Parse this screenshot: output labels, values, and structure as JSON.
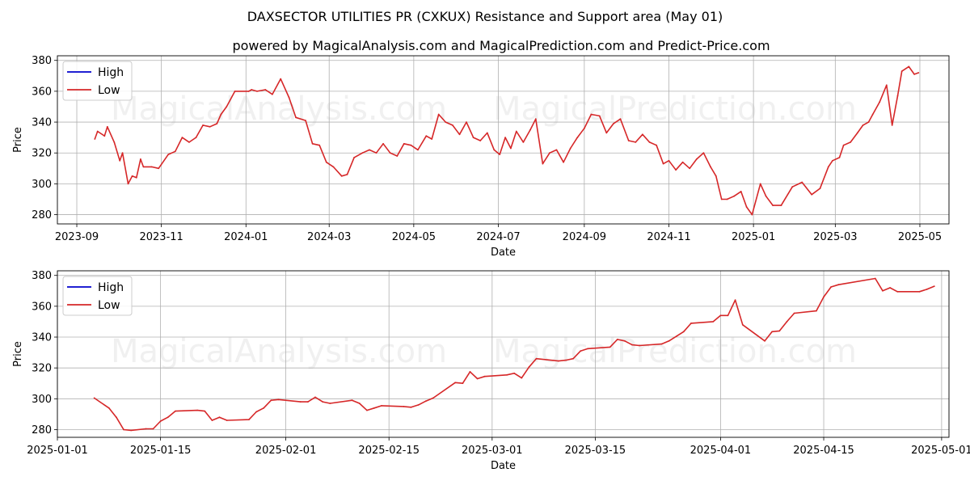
{
  "title": "DAXSECTOR UTILITIES PR (CXKUX) Resistance and Support area (May 01)",
  "subtitle": "powered by MagicalAnalysis.com and MagicalPrediction.com and Predict-Price.com",
  "watermarks": [
    "MagicalAnalysis.com",
    "MagicalPrediction.com"
  ],
  "colors": {
    "high": "#0000cc",
    "low": "#d62728",
    "grid": "#b0b0b0"
  },
  "chart_data": [
    {
      "type": "line",
      "xlabel": "Date",
      "ylabel": "Price",
      "legend": [
        "High",
        "Low"
      ],
      "legend_position": "top-left",
      "grid": true,
      "xlim": [
        "2023-08-18",
        "2025-05-22"
      ],
      "ylim": [
        274,
        383
      ],
      "x_ticks": [
        "2023-09",
        "2023-11",
        "2024-01",
        "2024-03",
        "2024-05",
        "2024-07",
        "2024-09",
        "2024-11",
        "2025-01",
        "2025-03",
        "2025-05"
      ],
      "y_ticks": [
        280,
        300,
        320,
        340,
        360,
        380
      ],
      "series": [
        {
          "name": "Low",
          "x": [
            "2023-09-14",
            "2023-09-16",
            "2023-09-21",
            "2023-09-23",
            "2023-09-28",
            "2023-10-02",
            "2023-10-04",
            "2023-10-08",
            "2023-10-11",
            "2023-10-14",
            "2023-10-17",
            "2023-10-19",
            "2023-10-25",
            "2023-10-30",
            "2023-11-06",
            "2023-11-11",
            "2023-11-16",
            "2023-11-21",
            "2023-11-26",
            "2023-12-01",
            "2023-12-06",
            "2023-12-11",
            "2023-12-14",
            "2023-12-18",
            "2023-12-24",
            "2024-01-03",
            "2024-01-05",
            "2024-01-09",
            "2024-01-15",
            "2024-01-20",
            "2024-01-26",
            "2024-02-01",
            "2024-02-06",
            "2024-02-13",
            "2024-02-18",
            "2024-02-23",
            "2024-02-28",
            "2024-03-04",
            "2024-03-10",
            "2024-03-14",
            "2024-03-19",
            "2024-03-25",
            "2024-03-30",
            "2024-04-04",
            "2024-04-09",
            "2024-04-14",
            "2024-04-19",
            "2024-04-24",
            "2024-04-29",
            "2024-05-04",
            "2024-05-10",
            "2024-05-14",
            "2024-05-19",
            "2024-05-24",
            "2024-05-29",
            "2024-06-03",
            "2024-06-08",
            "2024-06-13",
            "2024-06-18",
            "2024-06-23",
            "2024-06-28",
            "2024-07-02",
            "2024-07-06",
            "2024-07-10",
            "2024-07-14",
            "2024-07-19",
            "2024-07-24",
            "2024-07-28",
            "2024-08-02",
            "2024-08-07",
            "2024-08-12",
            "2024-08-17",
            "2024-08-22",
            "2024-08-27",
            "2024-09-01",
            "2024-09-06",
            "2024-09-12",
            "2024-09-17",
            "2024-09-22",
            "2024-09-27",
            "2024-10-03",
            "2024-10-08",
            "2024-10-13",
            "2024-10-18",
            "2024-10-23",
            "2024-10-28",
            "2024-11-01",
            "2024-11-06",
            "2024-11-11",
            "2024-11-16",
            "2024-11-21",
            "2024-11-26",
            "2024-12-01",
            "2024-12-05",
            "2024-12-09",
            "2024-12-13",
            "2024-12-18",
            "2024-12-23",
            "2024-12-27",
            "2024-12-31",
            "2025-01-06",
            "2025-01-10",
            "2025-01-15",
            "2025-01-21",
            "2025-01-29",
            "2025-02-05",
            "2025-02-12",
            "2025-02-18",
            "2025-02-24",
            "2025-02-27",
            "2025-03-04",
            "2025-03-07",
            "2025-03-12",
            "2025-03-17",
            "2025-03-21",
            "2025-03-25",
            "2025-03-28",
            "2025-04-02",
            "2025-04-07",
            "2025-04-11",
            "2025-04-15",
            "2025-04-18",
            "2025-04-23",
            "2025-04-27",
            "2025-04-30"
          ],
          "values": [
            329,
            334,
            331,
            337,
            327,
            315,
            320,
            300,
            305,
            304,
            316,
            311,
            311,
            310,
            319,
            321,
            330,
            327,
            330,
            338,
            337,
            339,
            345,
            350,
            360,
            360,
            361,
            360,
            361,
            358,
            368,
            356,
            343,
            341,
            326,
            325,
            314,
            311,
            305,
            306,
            317,
            320,
            322,
            320,
            326,
            320,
            318,
            326,
            325,
            322,
            331,
            329,
            345,
            340,
            338,
            332,
            340,
            330,
            328,
            333,
            322,
            319,
            330,
            323,
            334,
            327,
            335,
            342,
            313,
            320,
            322,
            314,
            323,
            330,
            336,
            345,
            344,
            333,
            339,
            342,
            328,
            327,
            332,
            327,
            325,
            313,
            315,
            309,
            314,
            310,
            316,
            320,
            311,
            305,
            290,
            290,
            292,
            295,
            285,
            280,
            300,
            292,
            286,
            286,
            298,
            301,
            293,
            297,
            311,
            315,
            317,
            325,
            327,
            333,
            338,
            340,
            345,
            353,
            364,
            338,
            357,
            373,
            376,
            371,
            372
          ]
        },
        {
          "name": "High",
          "x": [],
          "values": []
        }
      ]
    },
    {
      "type": "line",
      "xlabel": "Date",
      "ylabel": "Price",
      "legend": [
        "High",
        "Low"
      ],
      "legend_position": "top-left",
      "grid": true,
      "xlim": [
        "2025-01-01",
        "2025-05-02"
      ],
      "ylim": [
        275,
        383
      ],
      "x_ticks": [
        "2025-01-01",
        "2025-01-15",
        "2025-02-01",
        "2025-02-15",
        "2025-03-01",
        "2025-03-15",
        "2025-04-01",
        "2025-04-15",
        "2025-05-01"
      ],
      "y_ticks": [
        280,
        300,
        320,
        340,
        360,
        380
      ],
      "series": [
        {
          "name": "Low",
          "x": [
            "2025-01-06",
            "2025-01-08",
            "2025-01-09",
            "2025-01-10",
            "2025-01-11",
            "2025-01-13",
            "2025-01-14",
            "2025-01-15",
            "2025-01-16",
            "2025-01-17",
            "2025-01-20",
            "2025-01-21",
            "2025-01-22",
            "2025-01-23",
            "2025-01-24",
            "2025-01-27",
            "2025-01-28",
            "2025-01-29",
            "2025-01-30",
            "2025-01-31",
            "2025-02-03",
            "2025-02-04",
            "2025-02-05",
            "2025-02-06",
            "2025-02-07",
            "2025-02-10",
            "2025-02-11",
            "2025-02-12",
            "2025-02-13",
            "2025-02-14",
            "2025-02-17",
            "2025-02-18",
            "2025-02-19",
            "2025-02-20",
            "2025-02-21",
            "2025-02-24",
            "2025-02-25",
            "2025-02-26",
            "2025-02-27",
            "2025-02-28",
            "2025-03-03",
            "2025-03-04",
            "2025-03-05",
            "2025-03-06",
            "2025-03-07",
            "2025-03-10",
            "2025-03-11",
            "2025-03-12",
            "2025-03-13",
            "2025-03-14",
            "2025-03-17",
            "2025-03-18",
            "2025-03-19",
            "2025-03-20",
            "2025-03-21",
            "2025-03-24",
            "2025-03-25",
            "2025-03-26",
            "2025-03-27",
            "2025-03-28",
            "2025-03-31",
            "2025-04-01",
            "2025-04-02",
            "2025-04-03",
            "2025-04-04",
            "2025-04-07",
            "2025-04-08",
            "2025-04-09",
            "2025-04-10",
            "2025-04-11",
            "2025-04-14",
            "2025-04-15",
            "2025-04-16",
            "2025-04-17",
            "2025-04-22",
            "2025-04-23",
            "2025-04-24",
            "2025-04-25",
            "2025-04-28",
            "2025-04-29",
            "2025-04-30"
          ],
          "values": [
            300.5,
            294,
            288,
            280,
            279.5,
            280.5,
            280.5,
            285.5,
            288,
            292,
            292.5,
            292,
            286,
            288,
            286,
            286.5,
            291.5,
            294,
            299,
            299.5,
            298,
            298,
            301,
            298,
            297,
            299,
            297,
            292.5,
            294,
            295.5,
            295,
            294.5,
            296,
            298.5,
            300.5,
            310.5,
            310,
            317.5,
            313,
            314.5,
            315.5,
            316.5,
            313.5,
            320.5,
            326,
            324.5,
            325,
            326,
            331,
            332.5,
            333.5,
            338.5,
            337.5,
            335,
            334.5,
            335.5,
            337.5,
            340.5,
            343.5,
            349,
            350,
            354,
            354,
            364,
            348,
            337.5,
            343.5,
            344,
            350,
            355.5,
            357,
            366,
            372.5,
            374,
            378,
            370,
            372,
            369.5,
            369.5,
            371,
            373
          ]
        },
        {
          "name": "High",
          "x": [],
          "values": []
        }
      ]
    }
  ]
}
